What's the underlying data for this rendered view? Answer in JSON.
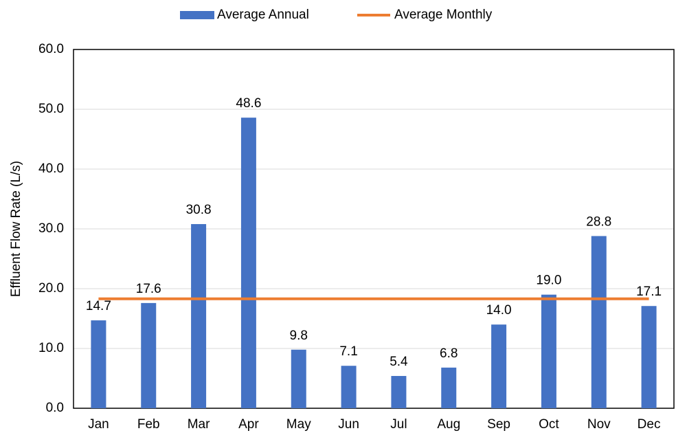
{
  "chart_data": {
    "type": "bar",
    "y_label": "Effluent Flow Rate (L/s)",
    "categories": [
      "Jan",
      "Feb",
      "Mar",
      "Apr",
      "May",
      "Jun",
      "Jul",
      "Aug",
      "Sep",
      "Oct",
      "Nov",
      "Dec"
    ],
    "series": [
      {
        "name": "Average Annual",
        "type": "bar",
        "color": "#4472c4",
        "values": [
          14.7,
          17.6,
          30.8,
          48.6,
          9.8,
          7.1,
          5.4,
          6.8,
          14.0,
          19.0,
          28.8,
          17.1
        ],
        "value_labels": [
          "14.7",
          "17.6",
          "30.8",
          "48.6",
          "9.8",
          "7.1",
          "5.4",
          "6.8",
          "14.0",
          "19.0",
          "28.8",
          "17.1"
        ]
      },
      {
        "name": "Average Monthly",
        "type": "line",
        "color": "#ed7d31",
        "values": [
          18.3,
          18.3,
          18.3,
          18.3,
          18.3,
          18.3,
          18.3,
          18.3,
          18.3,
          18.3,
          18.3,
          18.3
        ]
      }
    ],
    "ylim": [
      0,
      60
    ],
    "yticks": [
      {
        "value": 0,
        "label": "0.0"
      },
      {
        "value": 10,
        "label": "10.0"
      },
      {
        "value": 20,
        "label": "20.0"
      },
      {
        "value": 30,
        "label": "30.0"
      },
      {
        "value": 40,
        "label": "40.0"
      },
      {
        "value": 50,
        "label": "50.0"
      },
      {
        "value": 60,
        "label": "60.0"
      }
    ],
    "grid": true,
    "legend": "top"
  }
}
